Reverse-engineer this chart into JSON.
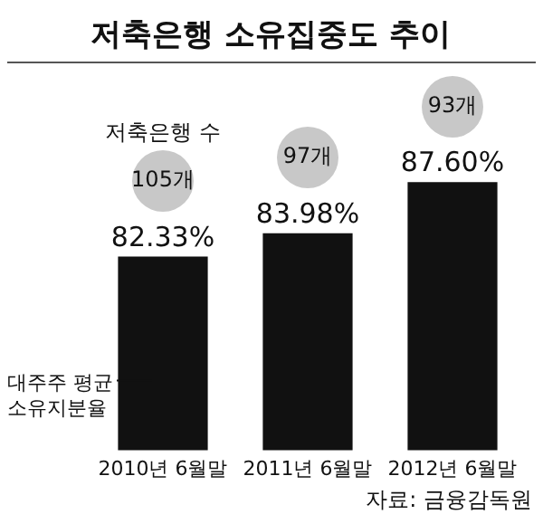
{
  "chart_data": {
    "type": "bar",
    "title": "저축은행 소유집중도 추이",
    "categories": [
      "2010년 6월말",
      "2011년 6월말",
      "2012년 6월말"
    ],
    "series": [
      {
        "name": "대주주 평균 소유지분율",
        "color": "#111111",
        "values": [
          82.33,
          83.98,
          87.6
        ],
        "value_labels": [
          "82.33%",
          "83.98%",
          "87.60%"
        ]
      }
    ],
    "tick_labels": "x",
    "grid": false,
    "legend": "top left",
    "annotations": [
      "저축은행 수",
      "105개",
      "97개",
      "93개",
      "자료: 금융감독원"
    ]
  }
}
